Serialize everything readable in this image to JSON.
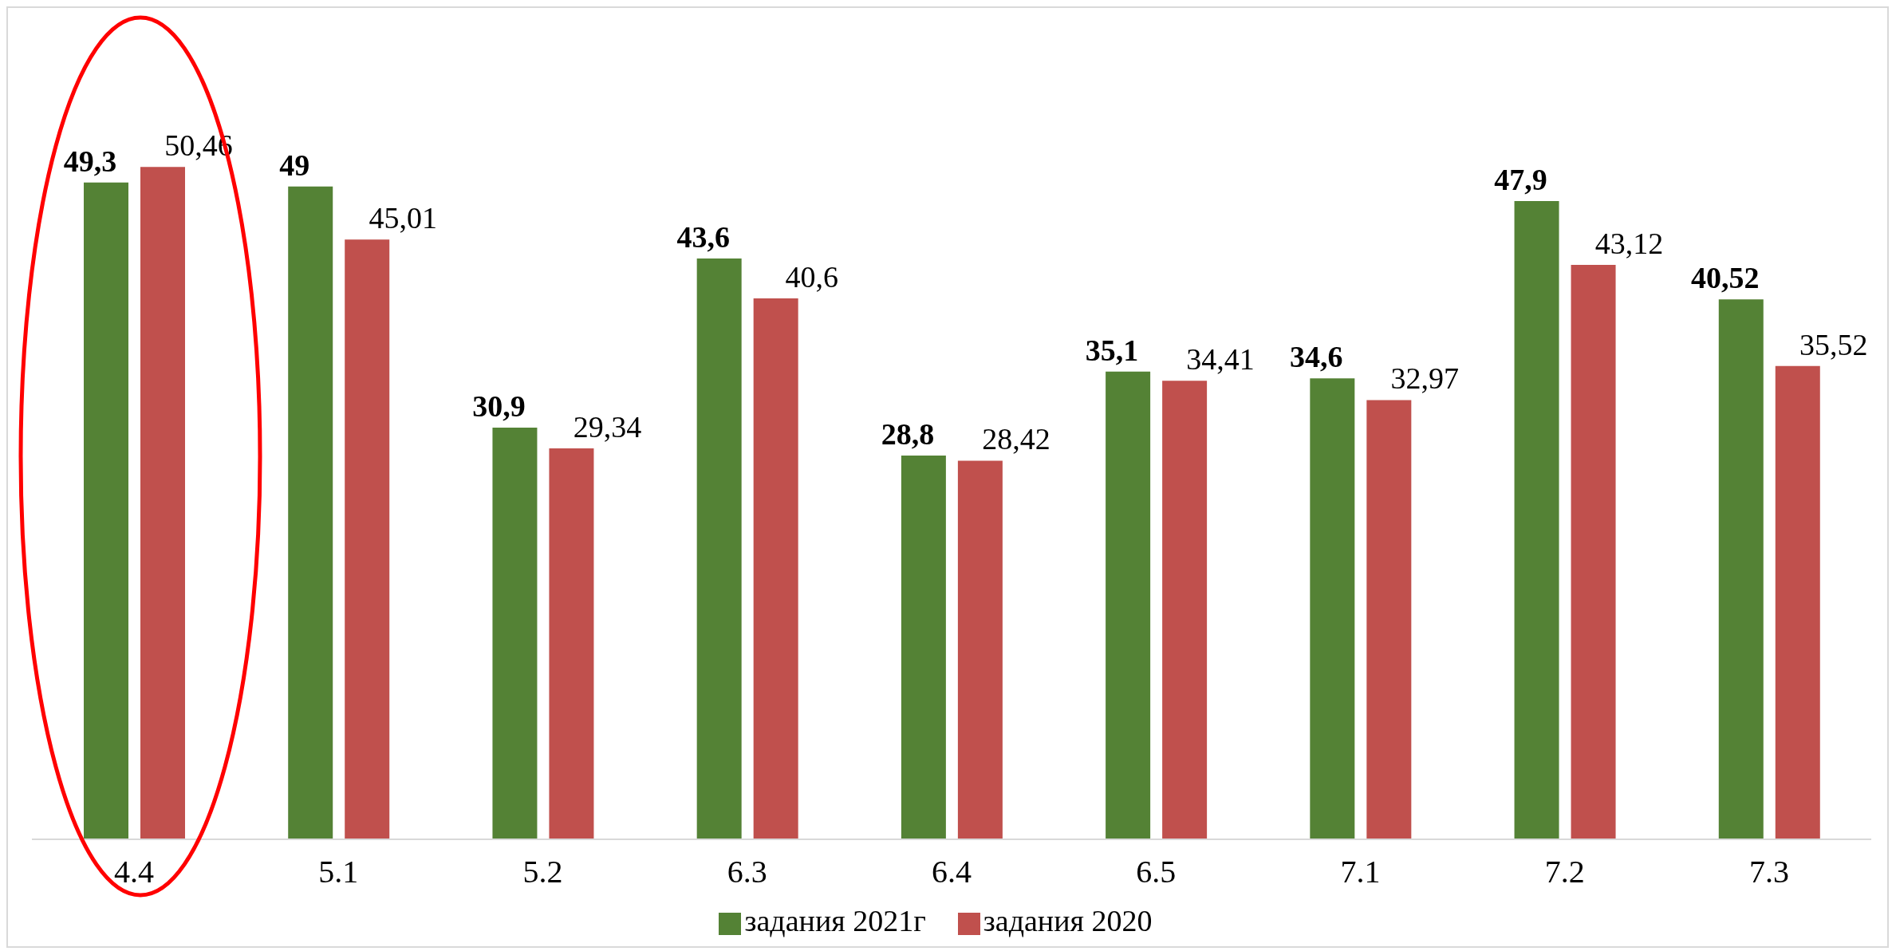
{
  "chart_data": {
    "type": "bar",
    "categories": [
      "4.4",
      "5.1",
      "5.2",
      "6.3",
      "6.4",
      "6.5",
      "7.1",
      "7.2",
      "7.3"
    ],
    "series": [
      {
        "name": "задания 2021г",
        "color": "#548235",
        "values": [
          49.3,
          49,
          30.9,
          43.6,
          28.8,
          35.1,
          34.6,
          47.9,
          40.52
        ],
        "value_labels": [
          "49,3",
          "49",
          "30,9",
          "43,6",
          "28,8",
          "35,1",
          "34,6",
          "47,9",
          "40,52"
        ]
      },
      {
        "name": "задания 2020",
        "color": "#c0504d",
        "values": [
          50.46,
          45.01,
          29.34,
          40.6,
          28.42,
          34.41,
          32.97,
          43.12,
          35.52
        ],
        "value_labels": [
          "50,46",
          "45,01",
          "29,34",
          "40,6",
          "28,42",
          "34,41",
          "32,97",
          "43,12",
          "35,52"
        ]
      }
    ],
    "legend": "bottom"
  }
}
